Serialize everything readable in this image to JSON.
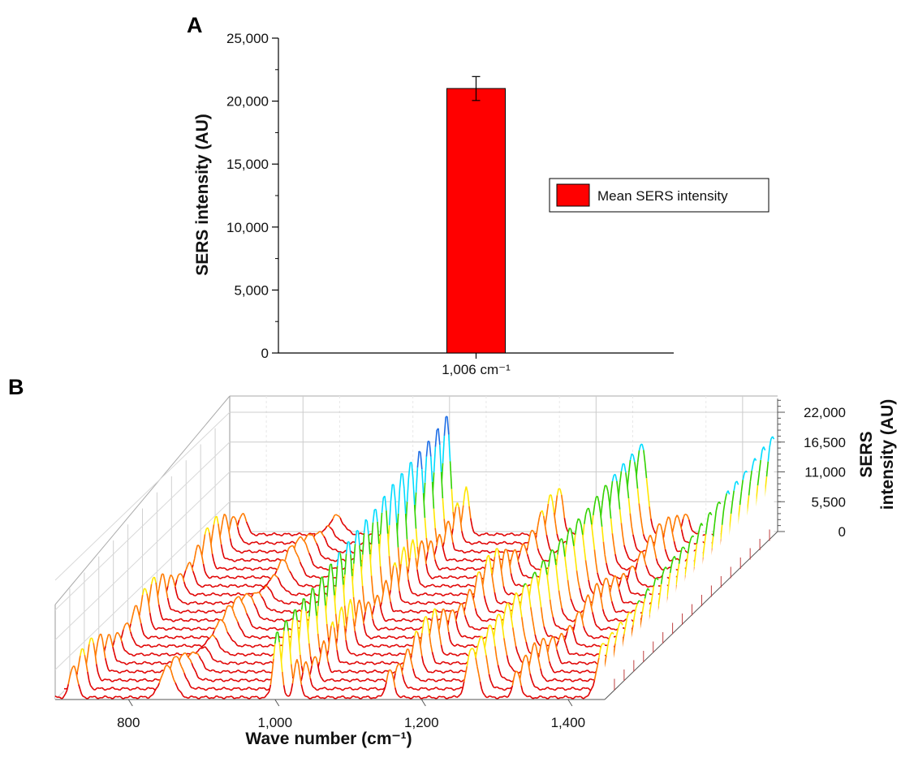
{
  "chart_data": [
    {
      "panel": "A",
      "type": "bar",
      "categories": [
        "1,006 cm⁻¹"
      ],
      "series": [
        {
          "name": "Mean SERS intensity",
          "values": [
            21000
          ],
          "error": [
            950
          ],
          "color": "#ff0000"
        }
      ],
      "ylabel": "SERS intensity (AU)",
      "ylim": [
        0,
        25000
      ],
      "yticks": [
        0,
        5000,
        10000,
        15000,
        20000,
        25000
      ],
      "ytick_labels": [
        "0",
        "5,000",
        "10,000",
        "15,000",
        "20,000",
        "25,000"
      ],
      "grid": false,
      "legend": "right"
    },
    {
      "panel": "B",
      "type": "line",
      "projection": "3d-waterfall",
      "xlabel": "Wave number (cm⁻¹)",
      "zlabel_lines": [
        "SERS",
        "intensity (AU)"
      ],
      "xlim": [
        700,
        1450
      ],
      "xticks": [
        800,
        1000,
        1200,
        1400
      ],
      "xtick_labels": [
        "800",
        "1,000",
        "1,200",
        "1,400"
      ],
      "zlim": [
        0,
        25000
      ],
      "zticks": [
        0,
        5500,
        11000,
        16500,
        22000
      ],
      "ztick_labels": [
        "0",
        "5,500",
        "11,000",
        "16,500",
        "22,000"
      ],
      "n_spectra": 20,
      "peaks_cm-1": [
        725,
        853,
        1003,
        1030,
        1157,
        1269,
        1330,
        1448
      ],
      "peak_heights_au": [
        8000,
        6000,
        22000,
        9000,
        9000,
        17000,
        7000,
        18000
      ],
      "colormap": [
        "#e00000",
        "#ff7a00",
        "#ffe600",
        "#32d200",
        "#00dcff",
        "#1e6ee6",
        "#1414b4"
      ],
      "grid": true
    }
  ]
}
